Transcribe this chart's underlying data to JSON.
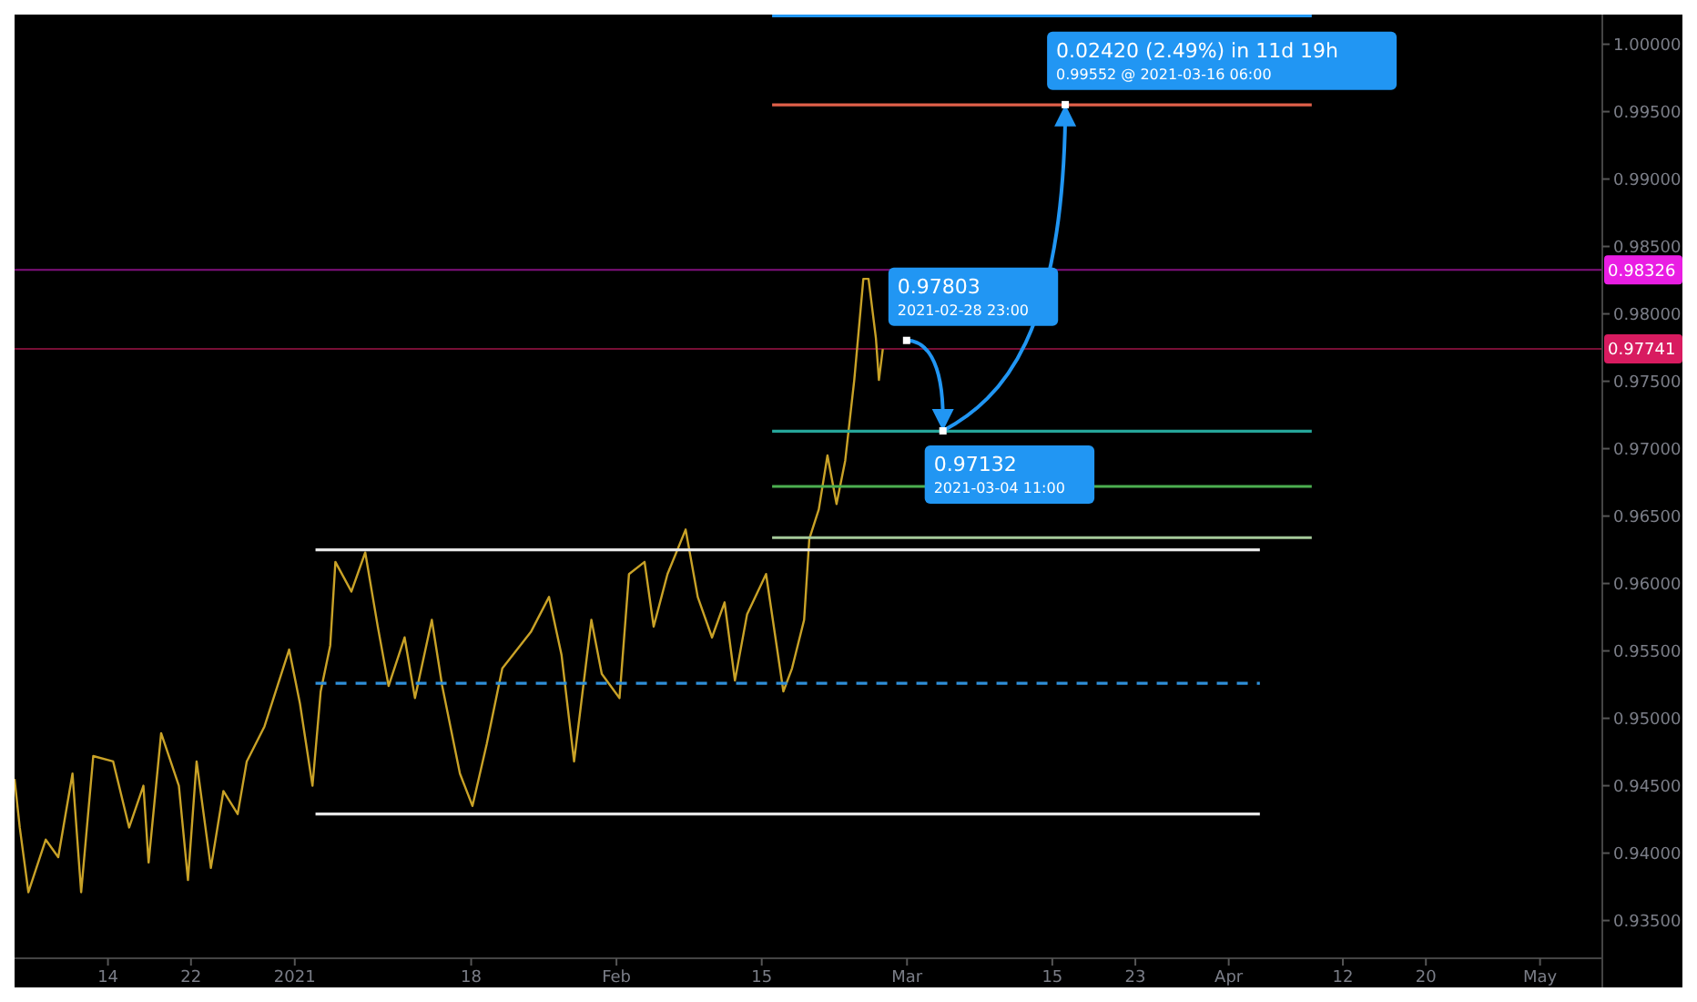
{
  "chart_data": {
    "type": "line",
    "xlim": [
      "2020-12-05",
      "2021-05-07"
    ],
    "ylim": [
      0.9322,
      1.0022
    ],
    "xticks": [
      {
        "value": "2020-12-14",
        "label": "14"
      },
      {
        "value": "2020-12-22",
        "label": "22"
      },
      {
        "value": "2021-01-01",
        "label": "2021"
      },
      {
        "value": "2021-01-18",
        "label": "18"
      },
      {
        "value": "2021-02-01",
        "label": "Feb"
      },
      {
        "value": "2021-02-15",
        "label": "15"
      },
      {
        "value": "2021-03-01",
        "label": "Mar"
      },
      {
        "value": "2021-03-15",
        "label": "15"
      },
      {
        "value": "2021-03-23",
        "label": "23"
      },
      {
        "value": "2021-04-01",
        "label": "Apr"
      },
      {
        "value": "2021-04-12",
        "label": "12"
      },
      {
        "value": "2021-04-20",
        "label": "20"
      },
      {
        "value": "2021-05-01",
        "label": "May"
      }
    ],
    "yticks": [
      {
        "value": 0.935,
        "label": "0.93500"
      },
      {
        "value": 0.94,
        "label": "0.94000"
      },
      {
        "value": 0.945,
        "label": "0.94500"
      },
      {
        "value": 0.95,
        "label": "0.95000"
      },
      {
        "value": 0.955,
        "label": "0.95500"
      },
      {
        "value": 0.96,
        "label": "0.96000"
      },
      {
        "value": 0.965,
        "label": "0.96500"
      },
      {
        "value": 0.97,
        "label": "0.97000"
      },
      {
        "value": 0.975,
        "label": "0.97500"
      },
      {
        "value": 0.98,
        "label": "0.98000"
      },
      {
        "value": 0.985,
        "label": "0.98500"
      },
      {
        "value": 0.99,
        "label": "0.99000"
      },
      {
        "value": 0.995,
        "label": "0.99500"
      },
      {
        "value": 1.0,
        "label": "1.00000"
      }
    ],
    "series": [
      {
        "color": "#c9a227",
        "x": [
          "2020-12-05",
          "2020-12-05T12:00",
          "2020-12-06T08:00",
          "2020-12-08",
          "2020-12-09T05:00",
          "2020-12-10T14:00",
          "2020-12-11T10:00",
          "2020-12-12T14:00",
          "2020-12-14T12:00",
          "2020-12-16T01:00",
          "2020-12-17T10:00",
          "2020-12-17T22:00",
          "2020-12-19T03:00",
          "2020-12-20T20:00",
          "2020-12-21T17:00",
          "2020-12-22T13:00",
          "2020-12-23T22:00",
          "2020-12-25T03:00",
          "2020-12-26T12:00",
          "2020-12-27T09:00",
          "2020-12-29T02:00",
          "2020-12-31T11:00",
          "2021-01-01T12:00",
          "2021-01-02T17:00",
          "2021-01-03T12:00",
          "2021-01-04T10:00",
          "2021-01-04T22:00",
          "2021-01-06T11:00",
          "2021-01-07T19:00",
          "2021-01-09",
          "2021-01-10T01:00",
          "2021-01-11T14:00",
          "2021-01-12T14:00",
          "2021-01-14T05:00",
          "2021-01-15T05:00",
          "2021-01-16T22:00",
          "2021-01-18T03:00",
          "2021-01-19T12:00",
          "2021-01-21",
          "2021-01-23T18:00",
          "2021-01-25T12:00",
          "2021-01-26T17:00",
          "2021-01-27T22:00",
          "2021-01-29T14:00",
          "2021-01-30T14:00",
          "2021-02-01T07:00",
          "2021-02-02T05:00",
          "2021-02-03T17:00",
          "2021-02-04T14:00",
          "2021-02-05T22:00",
          "2021-02-07T16:00",
          "2021-02-08T20:00",
          "2021-02-10T05:00",
          "2021-02-11T10:00",
          "2021-02-12T10:00",
          "2021-02-13T14:00",
          "2021-02-15T10:00",
          "2021-02-17T02:00",
          "2021-02-17T22:00",
          "2021-02-19T02:00",
          "2021-02-19T14:00",
          "2021-02-20T12:00",
          "2021-02-21T08:00",
          "2021-02-22T05:00",
          "2021-02-23T01:00",
          "2021-02-23T22:00",
          "2021-02-24T19:00",
          "2021-02-25T07:00",
          "2021-02-26",
          "2021-02-26T07:00",
          "2021-02-26T16:00"
        ],
        "values": [
          0.9455,
          0.9419,
          0.9371,
          0.941,
          0.9397,
          0.9459,
          0.9371,
          0.9472,
          0.9468,
          0.9419,
          0.945,
          0.9393,
          0.9489,
          0.945,
          0.938,
          0.9468,
          0.9389,
          0.9446,
          0.9429,
          0.9468,
          0.9494,
          0.9551,
          0.9511,
          0.945,
          0.952,
          0.9554,
          0.9616,
          0.9594,
          0.9623,
          0.9568,
          0.9524,
          0.956,
          0.9515,
          0.9573,
          0.9524,
          0.9459,
          0.9435,
          0.9481,
          0.9537,
          0.9564,
          0.959,
          0.9547,
          0.9468,
          0.9573,
          0.9533,
          0.9515,
          0.9607,
          0.9616,
          0.9568,
          0.9607,
          0.964,
          0.959,
          0.956,
          0.9586,
          0.9528,
          0.9577,
          0.9607,
          0.952,
          0.9537,
          0.9573,
          0.9633,
          0.9655,
          0.9695,
          0.9659,
          0.9691,
          0.9751,
          0.9826,
          0.9826,
          0.9782,
          0.9751,
          0.9774
        ]
      },
      {
        "color": "#2196f3",
        "x": [
          "2021-02-16",
          "2021-04-09"
        ],
        "values": [
          1.0021,
          1.0021
        ]
      },
      {
        "color": "#e0604a",
        "x": [
          "2021-02-16",
          "2021-04-09"
        ],
        "values": [
          0.9955,
          0.9955
        ]
      },
      {
        "color": "#26a69a",
        "x": [
          "2021-02-16",
          "2021-04-09"
        ],
        "values": [
          0.9713,
          0.9713
        ]
      },
      {
        "color": "#4caf50",
        "x": [
          "2021-02-16",
          "2021-04-09"
        ],
        "values": [
          0.9672,
          0.9672
        ]
      },
      {
        "color": "#a5c99a",
        "x": [
          "2021-02-16",
          "2021-04-09"
        ],
        "values": [
          0.9634,
          0.9634
        ]
      },
      {
        "color": "#e6e6e6",
        "x": [
          "2021-01-03",
          "2021-04-04"
        ],
        "values": [
          0.9625,
          0.9625
        ]
      },
      {
        "color": "#e6e6e6",
        "x": [
          "2021-01-03",
          "2021-04-04"
        ],
        "values": [
          0.9429,
          0.9429
        ]
      },
      {
        "color": "#2f8fd8",
        "line_style": "dashed",
        "x": [
          "2021-01-03",
          "2021-04-04"
        ],
        "values": [
          0.9526,
          0.9526
        ]
      }
    ],
    "ref_lines": [
      {
        "axis": "y",
        "value": 0.98326,
        "label": "0.98326",
        "color": "#e91ee3"
      },
      {
        "axis": "y",
        "value": 0.97741,
        "label": "0.97741",
        "color": "#d81b60"
      }
    ],
    "annotations": [
      {
        "text": "0.97803",
        "x": "2021-02-28T23:00",
        "y": 0.97803
      },
      "2021-02-28 23:00",
      {
        "text": "0.97132",
        "x": "2021-03-04T11:00",
        "y": 0.97132
      },
      "2021-03-04 11:00",
      {
        "text": "0.02420 (2.49%) in 11d 19h",
        "x": "2021-03-16T06:00",
        "y": 0.99552
      },
      "0.99552 @ 2021-03-16  06:00"
    ]
  }
}
